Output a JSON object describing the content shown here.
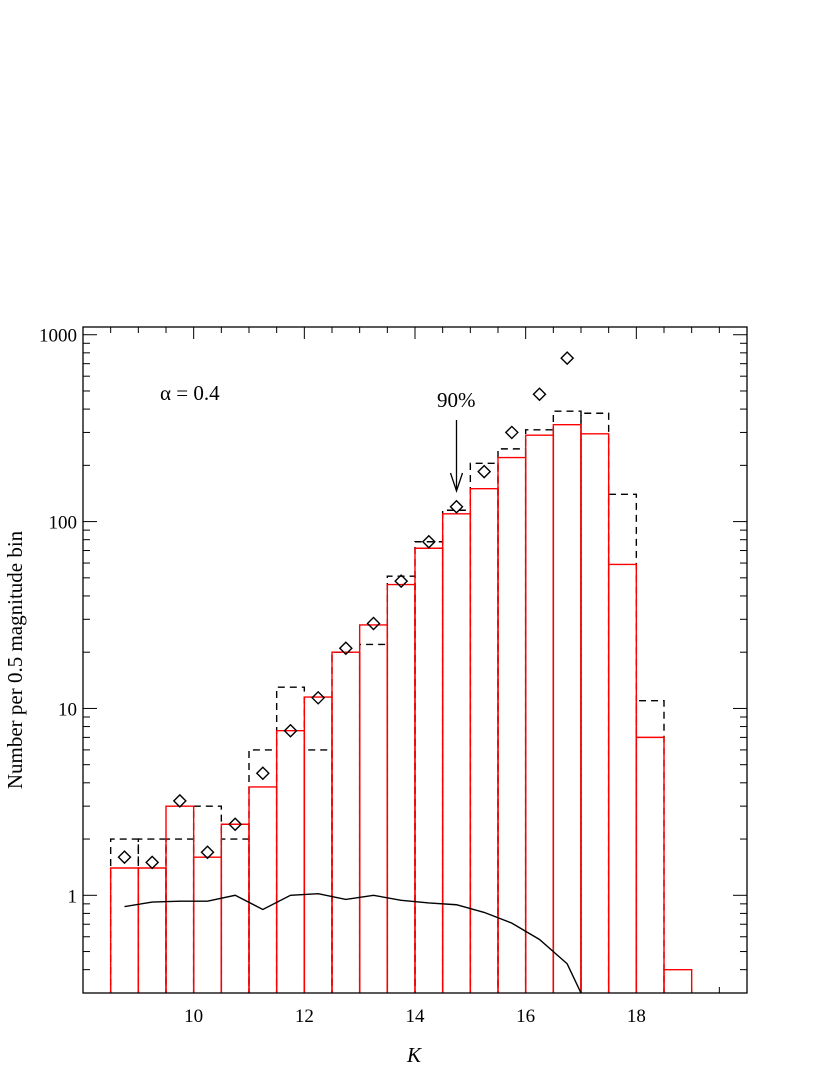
{
  "chart_data": {
    "type": "bar",
    "xlabel": "K",
    "ylabel": "Number per 0.5 magnitude bin",
    "xlim": [
      8.0,
      20.0
    ],
    "ylim": [
      0.3,
      1100
    ],
    "y_scale": "log",
    "x_ticks": [
      10,
      12,
      14,
      16,
      18
    ],
    "x_tick_labels": [
      "10",
      "12",
      "14",
      "16",
      "18"
    ],
    "y_ticks": [
      1,
      10,
      100,
      1000
    ],
    "y_tick_labels": [
      "1",
      "10",
      "100",
      "1000"
    ],
    "bin_edges": [
      8.5,
      9.0,
      9.5,
      10.0,
      10.5,
      11.0,
      11.5,
      12.0,
      12.5,
      13.0,
      13.5,
      14.0,
      14.5,
      15.0,
      15.5,
      16.0,
      16.5,
      17.0,
      17.5,
      18.0,
      18.5,
      19.0
    ],
    "series": [
      {
        "style": "dashed-histogram",
        "color": "#000000",
        "values": [
          2.0,
          2.0,
          2.0,
          3.0,
          2.0,
          6.0,
          13.0,
          6.0,
          20.0,
          22.0,
          51.0,
          78.0,
          115.0,
          205.0,
          245.0,
          310.0,
          390.0,
          380.0,
          140.0,
          11.0,
          null
        ]
      },
      {
        "style": "solid-histogram",
        "color": "#ff0000",
        "values": [
          1.4,
          1.4,
          3.0,
          1.6,
          2.4,
          3.8,
          7.6,
          11.5,
          20.0,
          28.0,
          46.0,
          72.0,
          110.0,
          150.0,
          220.0,
          290.0,
          330.0,
          295.0,
          59.0,
          7.0,
          0.4
        ]
      },
      {
        "style": "diamond-markers",
        "color": "#000000",
        "x": [
          8.75,
          9.25,
          9.75,
          10.25,
          10.75,
          11.25,
          11.75,
          12.25,
          12.75,
          13.25,
          13.75,
          14.25,
          14.75,
          15.25,
          15.75,
          16.25,
          16.75
        ],
        "values": [
          1.6,
          1.5,
          3.2,
          1.7,
          2.4,
          4.5,
          7.6,
          11.4,
          21.0,
          28.5,
          48.0,
          78.0,
          120.0,
          185.0,
          300.0,
          480.0,
          750.0
        ]
      },
      {
        "style": "solid-line",
        "color": "#000000",
        "x": [
          8.75,
          9.25,
          9.75,
          10.25,
          10.75,
          11.25,
          11.75,
          12.25,
          12.75,
          13.25,
          13.75,
          14.25,
          14.75,
          15.25,
          15.75,
          16.25,
          16.75,
          17.0,
          17.25
        ],
        "values": [
          0.87,
          0.92,
          0.93,
          0.93,
          1.0,
          0.84,
          1.0,
          1.02,
          0.95,
          1.0,
          0.94,
          0.91,
          0.89,
          0.81,
          0.71,
          0.58,
          0.43,
          0.3,
          0.2
        ]
      }
    ],
    "annotations": {
      "alpha_label": "α = 0.4",
      "arrow_label": "90%",
      "arrow_x": 14.75
    }
  }
}
